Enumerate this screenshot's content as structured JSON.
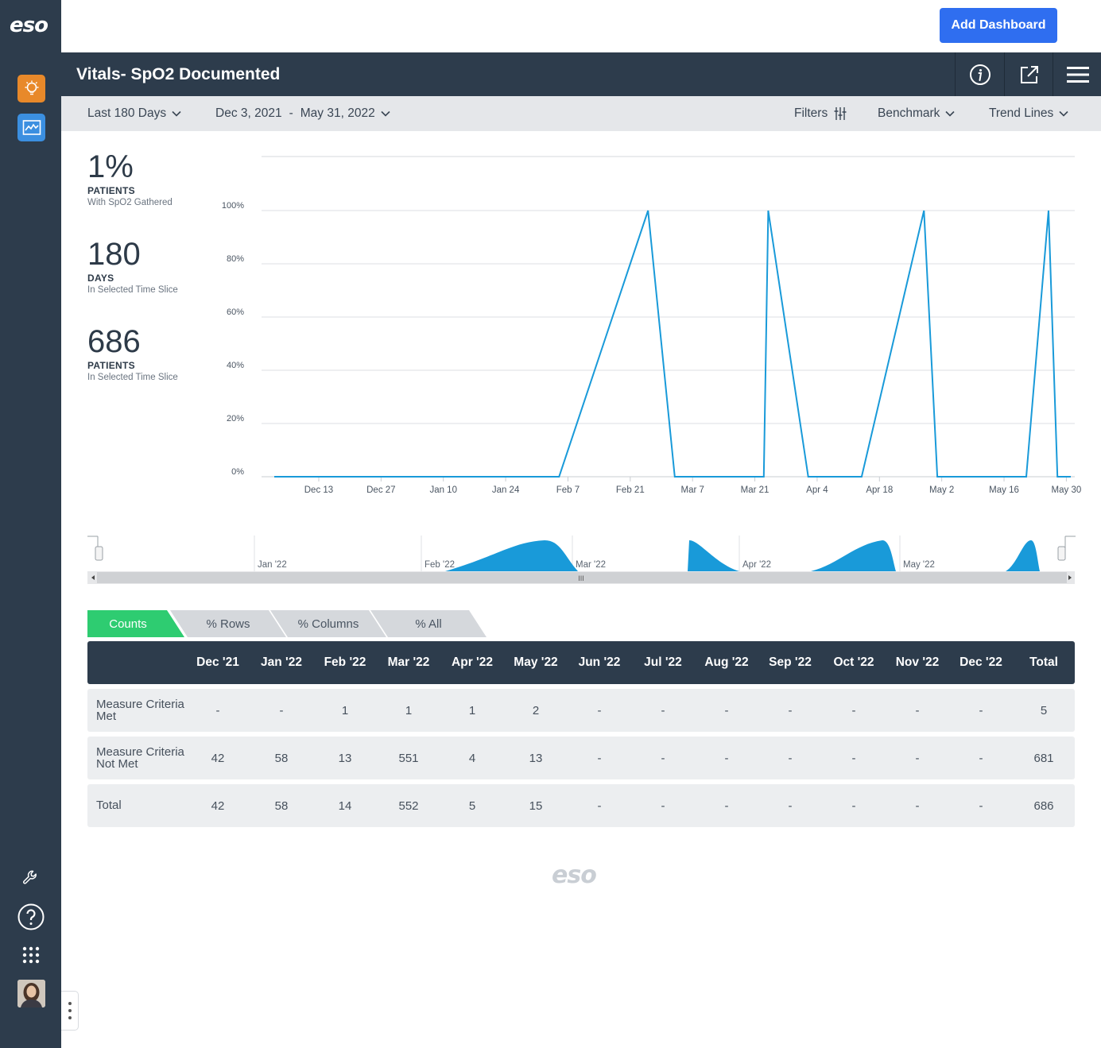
{
  "brand": {
    "logo": "eso",
    "accent": "#2f6ef0",
    "line_color": "#199ad9",
    "nav_bg": "#2d3c4c"
  },
  "topbar": {
    "add_dashboard": "Add Dashboard"
  },
  "report": {
    "title": "Vitals- SpO2 Documented"
  },
  "filters": {
    "range": "Last 180 Days",
    "start_date": "Dec 3, 2021",
    "separator": "-",
    "end_date": "May 31, 2022",
    "filters_label": "Filters",
    "benchmark_label": "Benchmark",
    "trend_label": "Trend Lines"
  },
  "stats": [
    {
      "value": "1%",
      "label": "PATIENTS",
      "sub": "With SpO2 Gathered"
    },
    {
      "value": "180",
      "label": "DAYS",
      "sub": "In Selected Time Slice"
    },
    {
      "value": "686",
      "label": "PATIENTS",
      "sub": "In Selected Time Slice"
    }
  ],
  "chart_data": {
    "type": "line",
    "title": "",
    "xlabel": "",
    "ylabel": "",
    "ylim": [
      0,
      100
    ],
    "y_ticks": [
      "0%",
      "20%",
      "40%",
      "60%",
      "80%",
      "100%"
    ],
    "x_ticks": [
      "Dec 13",
      "Dec 27",
      "Jan 10",
      "Jan 24",
      "Feb 7",
      "Feb 21",
      "Mar 7",
      "Mar 21",
      "Apr 4",
      "Apr 18",
      "May 2",
      "May 16",
      "May 30"
    ],
    "series": [
      {
        "points": [
          {
            "x": "2021-12-03",
            "y": 0
          },
          {
            "x": "2022-02-05",
            "y": 0
          },
          {
            "x": "2022-02-25",
            "y": 100
          },
          {
            "x": "2022-03-03",
            "y": 0
          },
          {
            "x": "2022-03-23",
            "y": 0
          },
          {
            "x": "2022-03-24",
            "y": 100
          },
          {
            "x": "2022-04-02",
            "y": 0
          },
          {
            "x": "2022-04-14",
            "y": 0
          },
          {
            "x": "2022-04-28",
            "y": 100
          },
          {
            "x": "2022-05-01",
            "y": 0
          },
          {
            "x": "2022-05-21",
            "y": 0
          },
          {
            "x": "2022-05-26",
            "y": 100
          },
          {
            "x": "2022-05-28",
            "y": 0
          },
          {
            "x": "2022-05-31",
            "y": 0
          }
        ]
      }
    ],
    "grid": true,
    "legend": "none"
  },
  "navigator": {
    "labels": [
      "Jan '22",
      "Feb '22",
      "Mar '22",
      "Apr '22",
      "May '22"
    ]
  },
  "tabs": [
    "Counts",
    "% Rows",
    "% Columns",
    "% All"
  ],
  "table": {
    "columns": [
      "",
      "Dec '21",
      "Jan '22",
      "Feb '22",
      "Mar '22",
      "Apr '22",
      "May '22",
      "Jun '22",
      "Jul '22",
      "Aug '22",
      "Sep '22",
      "Oct '22",
      "Nov '22",
      "Dec '22",
      "Total"
    ],
    "rows": [
      {
        "label": "Measure Criteria Met",
        "cells": [
          "-",
          "-",
          "1",
          "1",
          "1",
          "2",
          "-",
          "-",
          "-",
          "-",
          "-",
          "-",
          "-",
          "5"
        ]
      },
      {
        "label": "Measure Criteria Not Met",
        "cells": [
          "42",
          "58",
          "13",
          "551",
          "4",
          "13",
          "-",
          "-",
          "-",
          "-",
          "-",
          "-",
          "-",
          "681"
        ]
      },
      {
        "label": "Total",
        "cells": [
          "42",
          "58",
          "14",
          "552",
          "5",
          "15",
          "-",
          "-",
          "-",
          "-",
          "-",
          "-",
          "-",
          "686"
        ]
      }
    ]
  },
  "footer": {
    "logo": "eso"
  }
}
